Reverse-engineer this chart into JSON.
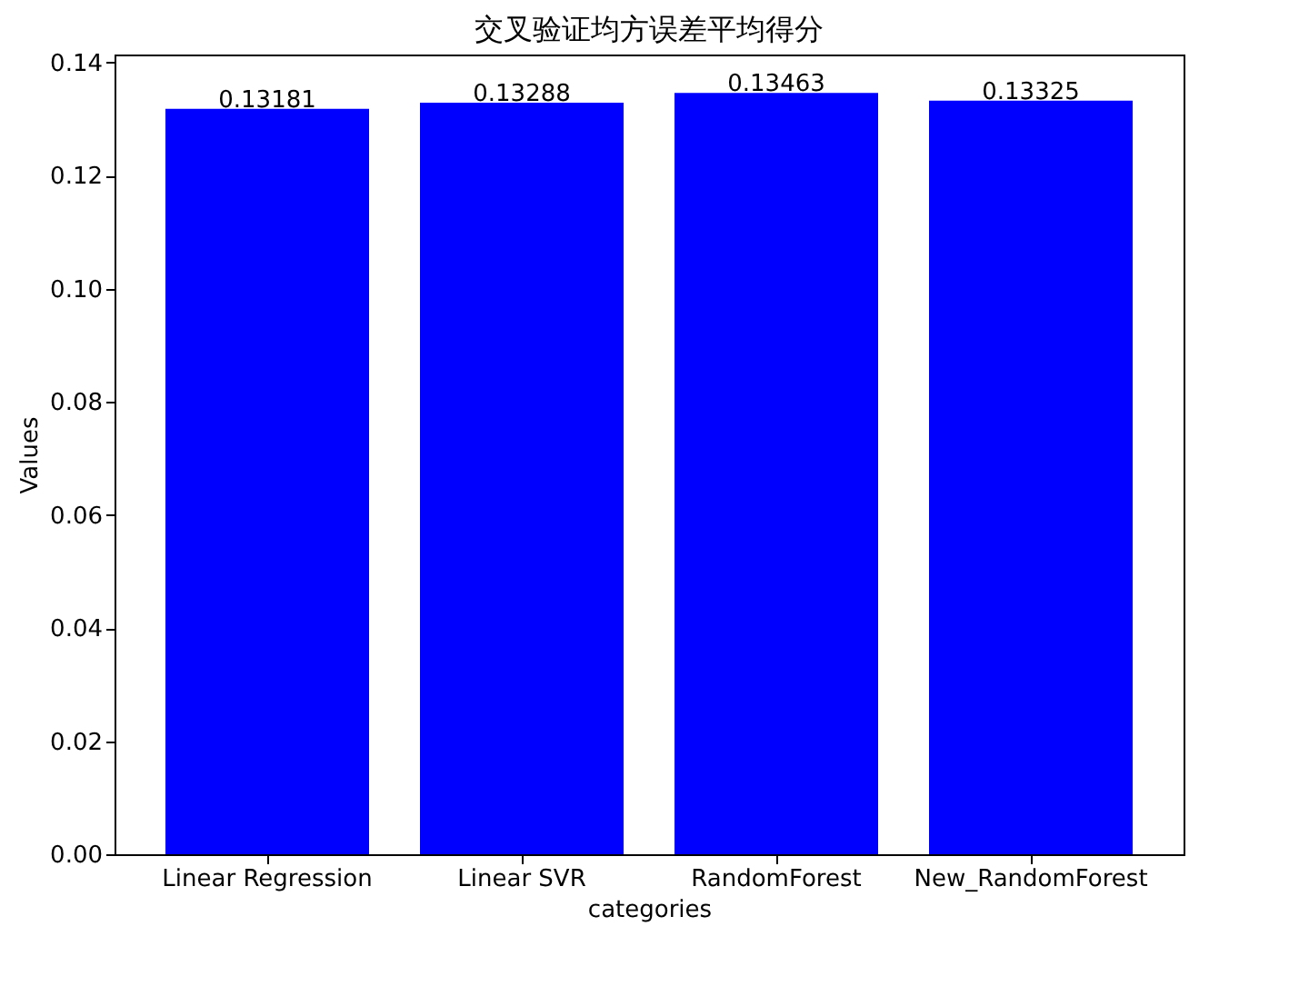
{
  "chart_data": {
    "type": "bar",
    "title": "交叉验证均方误差平均得分",
    "xlabel": "categories",
    "ylabel": "Values",
    "categories": [
      "Linear Regression",
      "Linear SVR",
      "RandomForest",
      "New_RandomForest"
    ],
    "values": [
      0.13181,
      0.13288,
      0.13463,
      0.13325
    ],
    "color": "#0000ff",
    "data_labels": true,
    "ylim": [
      0,
      0.1414
    ],
    "yticks": [
      {
        "value": 0,
        "label": "0.00"
      },
      0.02,
      0.04,
      0.06,
      0.08,
      {
        "value": 0.1,
        "label": "0.10"
      },
      0.12,
      0.14
    ],
    "grid": false
  }
}
